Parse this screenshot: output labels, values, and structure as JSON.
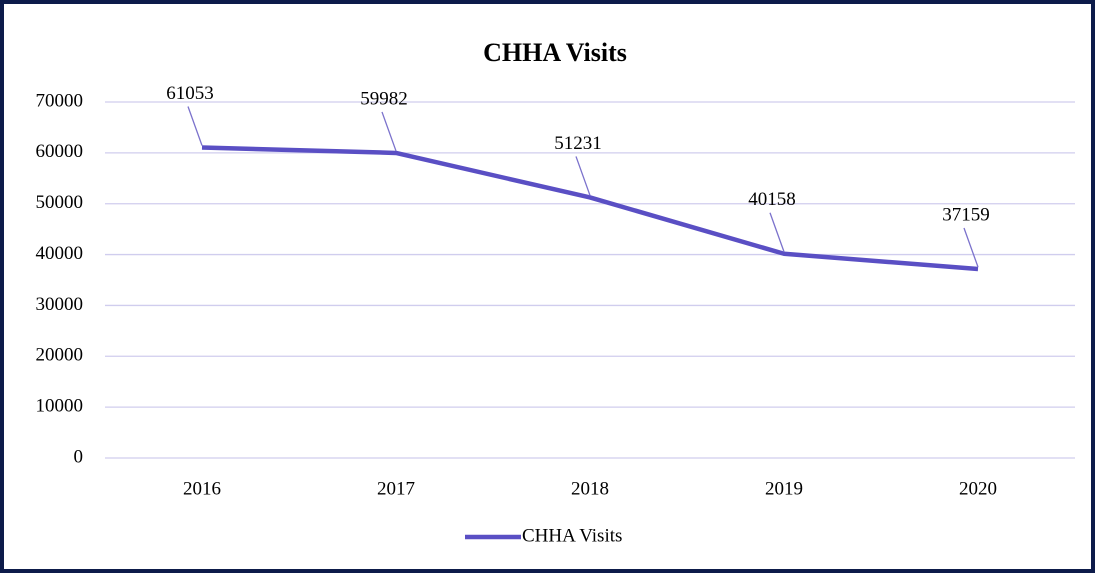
{
  "chart_data": {
    "type": "line",
    "title": "CHHA Visits",
    "categories": [
      "2016",
      "2017",
      "2018",
      "2019",
      "2020"
    ],
    "series": [
      {
        "name": "CHHA Visits",
        "color": "#5a4fc4",
        "values": [
          61053,
          59982,
          51231,
          40158,
          37159
        ]
      }
    ],
    "ylim": [
      0,
      70000
    ],
    "yticks": [
      0,
      10000,
      20000,
      30000,
      40000,
      50000,
      60000,
      70000
    ],
    "grid": true,
    "legend": "bottom",
    "data_labels": true
  }
}
